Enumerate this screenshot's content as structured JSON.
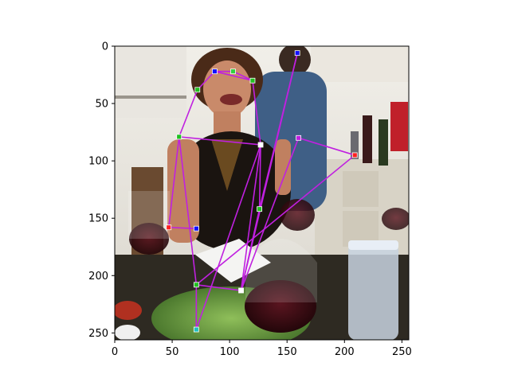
{
  "chart_data": {
    "type": "scatter",
    "subtype": "image-with-pose-overlay",
    "title": "",
    "xlabel": "",
    "ylabel": "",
    "xlim": [
      0,
      256
    ],
    "ylim": [
      256,
      0
    ],
    "y_axis_inverted": true,
    "grid": false,
    "xticks": [
      0,
      50,
      100,
      150,
      200,
      250
    ],
    "yticks": [
      0,
      50,
      100,
      150,
      200,
      250
    ],
    "photo_description_colors": {
      "skin": "#c98a6a",
      "hair": "#4a2a18",
      "dress": "#1a1410",
      "wine": "#3a0d14",
      "kitchen_wall": "#e8e4dc",
      "blue_shirt": "#3f5f86",
      "salad": "#5d8a3a",
      "table": "#2e2a22"
    },
    "skeleton_color": "#c020e0",
    "keypoints": [
      {
        "id": "head_top",
        "x": 159,
        "y": 6,
        "color": "#1010ff"
      },
      {
        "id": "left_eye",
        "x": 87,
        "y": 22,
        "color": "#1010ff"
      },
      {
        "id": "right_eye",
        "x": 103,
        "y": 22,
        "color": "#30d040"
      },
      {
        "id": "left_ear",
        "x": 72,
        "y": 38,
        "color": "#20c020"
      },
      {
        "id": "right_ear",
        "x": 120,
        "y": 30,
        "color": "#20c020"
      },
      {
        "id": "left_shoulder",
        "x": 56,
        "y": 79,
        "color": "#20c020"
      },
      {
        "id": "right_shoulder",
        "x": 127,
        "y": 86,
        "color": "#ffffff"
      },
      {
        "id": "right_hand",
        "x": 160,
        "y": 80,
        "color": "#c020e0"
      },
      {
        "id": "far_right",
        "x": 209,
        "y": 95,
        "color": "#ff2020"
      },
      {
        "id": "right_hip",
        "x": 126,
        "y": 142,
        "color": "#20c020"
      },
      {
        "id": "left_wrist",
        "x": 47,
        "y": 158,
        "color": "#ff2020"
      },
      {
        "id": "left_hand",
        "x": 71,
        "y": 159,
        "color": "#1010ff"
      },
      {
        "id": "left_knee",
        "x": 71,
        "y": 208,
        "color": "#20c020"
      },
      {
        "id": "right_knee",
        "x": 110,
        "y": 213,
        "color": "#ffffff"
      },
      {
        "id": "left_ankle",
        "x": 71,
        "y": 247,
        "color": "#20c0c0"
      }
    ],
    "edges": [
      [
        "left_ear",
        "left_eye"
      ],
      [
        "left_eye",
        "right_eye"
      ],
      [
        "right_eye",
        "right_ear"
      ],
      [
        "left_eye",
        "right_ear"
      ],
      [
        "right_ear",
        "right_shoulder"
      ],
      [
        "left_ear",
        "left_shoulder"
      ],
      [
        "left_shoulder",
        "right_shoulder"
      ],
      [
        "left_shoulder",
        "left_wrist"
      ],
      [
        "left_wrist",
        "left_hand"
      ],
      [
        "left_shoulder",
        "left_knee"
      ],
      [
        "left_knee",
        "left_ankle"
      ],
      [
        "left_ankle",
        "right_shoulder"
      ],
      [
        "right_shoulder",
        "right_hip"
      ],
      [
        "right_hip",
        "right_knee"
      ],
      [
        "right_shoulder",
        "right_knee"
      ],
      [
        "right_knee",
        "head_top"
      ],
      [
        "head_top",
        "right_hip"
      ],
      [
        "right_knee",
        "right_hand"
      ],
      [
        "right_hand",
        "far_right"
      ],
      [
        "far_right",
        "left_knee"
      ],
      [
        "left_knee",
        "right_knee"
      ]
    ]
  }
}
